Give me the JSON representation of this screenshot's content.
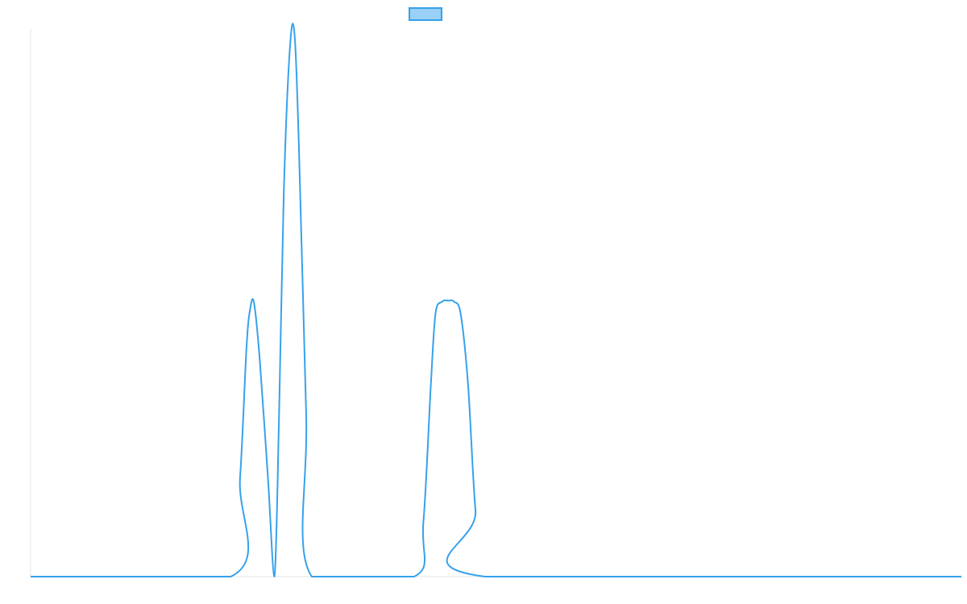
{
  "chart_data": {
    "type": "line",
    "title": "",
    "xlabel": "",
    "ylabel": "",
    "xlim": [
      0,
      100
    ],
    "ylim": [
      0,
      100
    ],
    "grid": false,
    "legend": {
      "placement": "top-center",
      "entries": [
        {
          "label": "",
          "color": "#36a2eb",
          "fill": "#9ad0f5"
        }
      ]
    },
    "series": [
      {
        "color": "#36a2eb",
        "x": [
          0,
          21.5,
          22.5,
          23.2,
          23.6,
          24.0,
          24.6,
          25.5,
          26.2,
          26.7,
          27.2,
          27.8,
          28.3,
          28.8,
          29.6,
          30.2,
          41.2,
          42.2,
          43.0,
          43.5,
          44.2,
          44.9,
          45.5,
          46.2,
          47.0,
          47.8,
          48.8,
          100
        ],
        "y": [
          0,
          0,
          18,
          42,
          49,
          50,
          40,
          18,
          0,
          30,
          70,
          95,
          100,
          80,
          30,
          0,
          0,
          10,
          35,
          48,
          50.2,
          50.4,
          50.2,
          48,
          35,
          12,
          0,
          0
        ]
      }
    ]
  }
}
